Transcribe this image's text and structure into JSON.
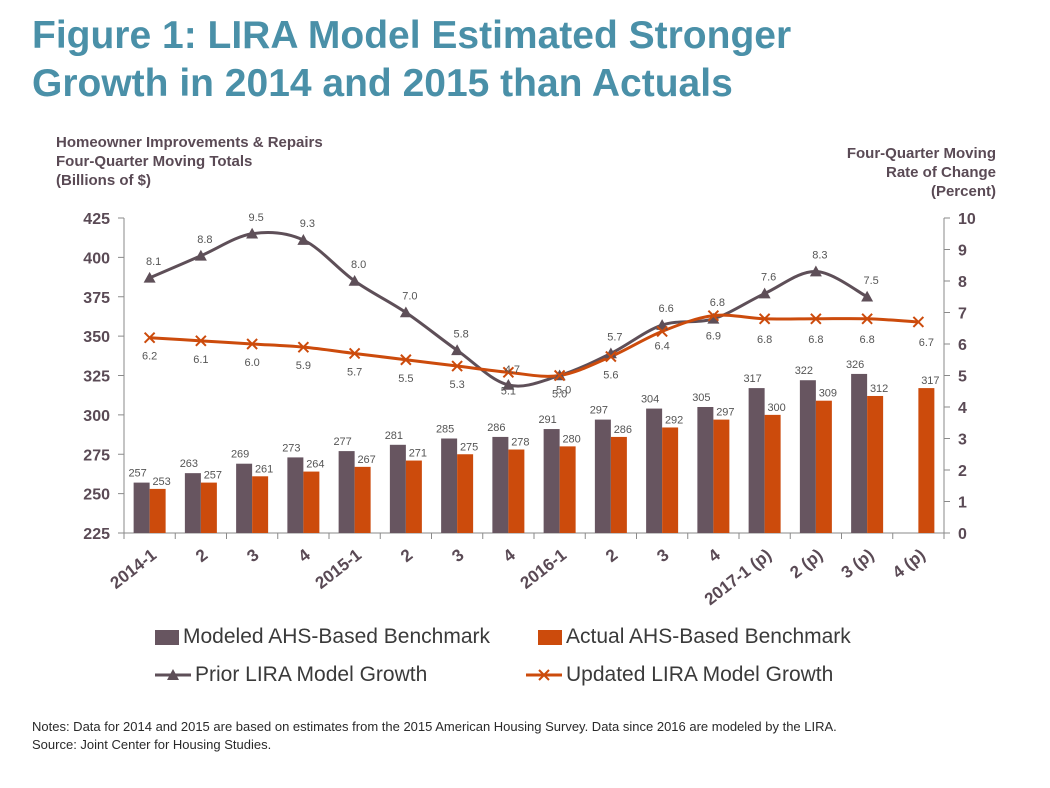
{
  "title_lines": [
    "Figure 1: LIRA Model Estimated Stronger",
    "Growth in 2014 and 2015 than Actuals"
  ],
  "notes": {
    "line1": "Notes: Data for 2014 and 2015 are based on estimates from the 2015 American Housing Survey. Data since 2016 are modeled by the LIRA.",
    "line2": "Source: Joint Center for Housing Studies."
  },
  "colors": {
    "title": "#4a90a8",
    "modeled_bar": "#675560",
    "actual_bar": "#cc4b0c",
    "prior_line": "#5e4f58",
    "updated_line": "#cc4b0c"
  },
  "chart_data": {
    "type": "bar",
    "categories": [
      "2014-1",
      "2",
      "3",
      "4",
      "2015-1",
      "2",
      "3",
      "4",
      "2016-1",
      "2",
      "3",
      "4",
      "2017-1 (p)",
      "2 (p)",
      "3 (p)",
      "4 (p)"
    ],
    "ylabel_lines": [
      "Homeowner Improvements & Repairs",
      "Four-Quarter Moving Totals",
      "(Billions of $)"
    ],
    "y2label_lines": [
      "Four-Quarter Moving",
      "Rate of Change",
      "(Percent)"
    ],
    "ylim": [
      225,
      425
    ],
    "yticks": [
      225,
      250,
      275,
      300,
      325,
      350,
      375,
      400,
      425
    ],
    "y2lim": [
      0,
      10
    ],
    "y2ticks": [
      0,
      1,
      2,
      3,
      4,
      5,
      6,
      7,
      8,
      9,
      10
    ],
    "grid": false,
    "legend_position": "bottom",
    "series": [
      {
        "name": "Modeled AHS-Based Benchmark",
        "kind": "bar",
        "axis": "left",
        "values": [
          257,
          263,
          269,
          273,
          277,
          281,
          285,
          286,
          291,
          297,
          304,
          305,
          317,
          322,
          326,
          null
        ]
      },
      {
        "name": "Actual AHS-Based Benchmark",
        "kind": "bar",
        "axis": "left",
        "values": [
          253,
          257,
          261,
          264,
          267,
          271,
          275,
          278,
          280,
          286,
          292,
          297,
          300,
          309,
          312,
          317
        ]
      },
      {
        "name": "Prior LIRA Model Growth",
        "kind": "line",
        "axis": "right",
        "marker": "triangle",
        "values": [
          8.1,
          8.8,
          9.5,
          9.3,
          8.0,
          7.0,
          5.8,
          4.7,
          5.0,
          5.7,
          6.6,
          6.8,
          7.6,
          8.3,
          7.5,
          null
        ]
      },
      {
        "name": "Updated LIRA Model Growth",
        "kind": "line",
        "axis": "right",
        "marker": "x",
        "values": [
          6.2,
          6.1,
          6.0,
          5.9,
          5.7,
          5.5,
          5.3,
          5.1,
          5.0,
          5.6,
          6.4,
          6.9,
          6.8,
          6.8,
          6.8,
          6.7
        ]
      }
    ]
  }
}
